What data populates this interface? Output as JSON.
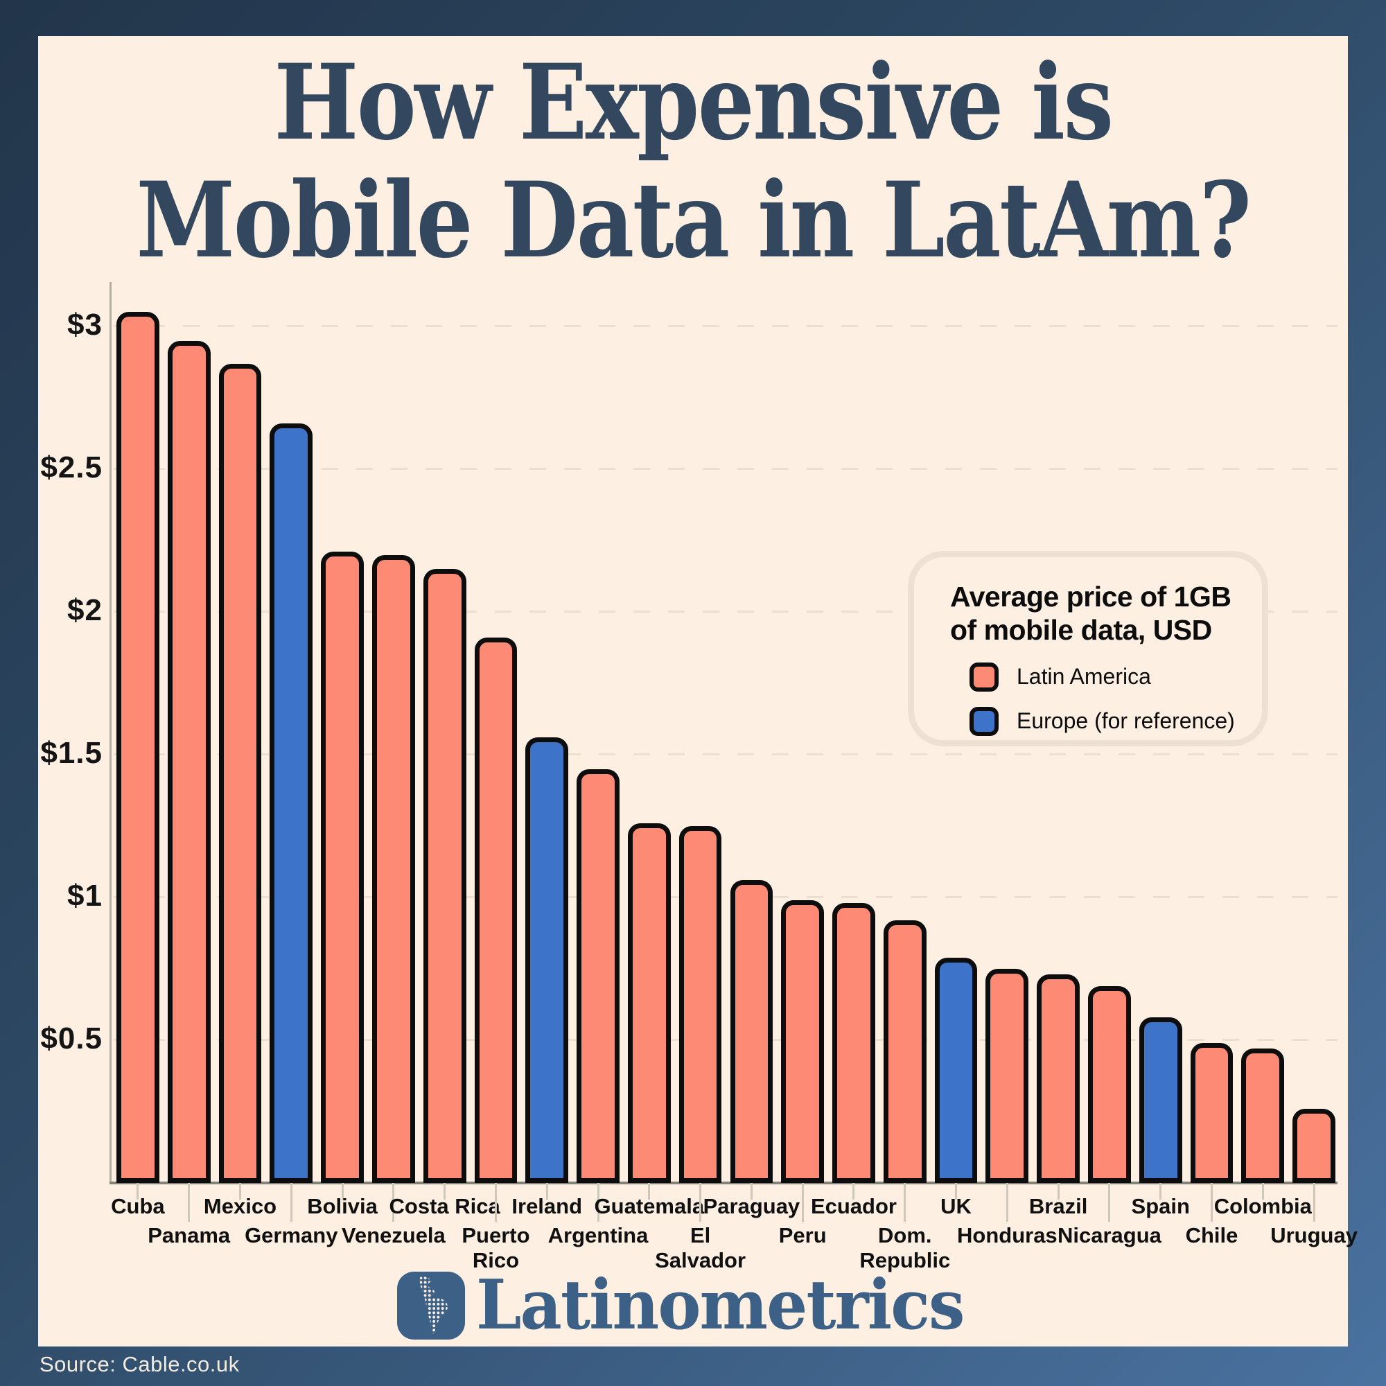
{
  "title": {
    "line1": "How Expensive is",
    "line2": "Mobile Data in LatAm?"
  },
  "legend": {
    "title_line1": "Average price of 1GB",
    "title_line2": "of mobile data, USD",
    "items": [
      {
        "label": "Latin America",
        "color": "#fc8a74"
      },
      {
        "label": "Europe (for reference)",
        "color": "#3d74c9"
      }
    ]
  },
  "footer": {
    "brand": "Latinometrics"
  },
  "source_text": "Source: Cable.co.uk",
  "colors": {
    "latin_america": "#fc8a74",
    "europe": "#3d74c9",
    "bar_outline": "#0d0d0d",
    "background_card": "#fdf0e3",
    "frame_dark": "#22354a",
    "frame_light": "#4a72a0",
    "title_navy": "#33485e",
    "brand_blue": "#3d6186"
  },
  "chart_data": {
    "type": "bar",
    "title": "Average price of 1GB of mobile data, USD",
    "xlabel": "",
    "ylabel": "USD",
    "ylim": [
      0,
      3.2
    ],
    "grid": "horizontal-dashed",
    "legend_position": "right-middle",
    "yticks": [
      {
        "value": 3.0,
        "label": "$3"
      },
      {
        "value": 2.5,
        "label": "$2.5"
      },
      {
        "value": 2.0,
        "label": "$2"
      },
      {
        "value": 1.5,
        "label": "$1.5"
      },
      {
        "value": 1.0,
        "label": "$1"
      },
      {
        "value": 0.5,
        "label": "$0.5"
      }
    ],
    "bars": [
      {
        "label": "Cuba",
        "value": 3.05,
        "region": "latam"
      },
      {
        "label": "Panama",
        "value": 2.95,
        "region": "latam"
      },
      {
        "label": "Mexico",
        "value": 2.87,
        "region": "latam"
      },
      {
        "label": "Germany",
        "value": 2.66,
        "region": "europe"
      },
      {
        "label": "Bolivia",
        "value": 2.21,
        "region": "latam"
      },
      {
        "label": "Venezuela",
        "value": 2.2,
        "region": "latam"
      },
      {
        "label": "Costa Rica",
        "value": 2.15,
        "region": "latam"
      },
      {
        "label": "Puerto\nRico",
        "value": 1.91,
        "region": "latam"
      },
      {
        "label": "Ireland",
        "value": 1.56,
        "region": "europe"
      },
      {
        "label": "Argentina",
        "value": 1.45,
        "region": "latam"
      },
      {
        "label": "Guatemala",
        "value": 1.26,
        "region": "latam"
      },
      {
        "label": "El\nSalvador",
        "value": 1.25,
        "region": "latam"
      },
      {
        "label": "Paraguay",
        "value": 1.06,
        "region": "latam"
      },
      {
        "label": "Peru",
        "value": 0.99,
        "region": "latam"
      },
      {
        "label": "Ecuador",
        "value": 0.98,
        "region": "latam"
      },
      {
        "label": "Dom.\nRepublic",
        "value": 0.92,
        "region": "latam"
      },
      {
        "label": "UK",
        "value": 0.79,
        "region": "europe"
      },
      {
        "label": "Honduras",
        "value": 0.75,
        "region": "latam"
      },
      {
        "label": "Brazil",
        "value": 0.73,
        "region": "latam"
      },
      {
        "label": "Nicaragua",
        "value": 0.69,
        "region": "latam"
      },
      {
        "label": "Spain",
        "value": 0.58,
        "region": "europe"
      },
      {
        "label": "Chile",
        "value": 0.49,
        "region": "latam"
      },
      {
        "label": "Colombia",
        "value": 0.47,
        "region": "latam"
      },
      {
        "label": "Uruguay",
        "value": 0.26,
        "region": "latam"
      }
    ]
  }
}
